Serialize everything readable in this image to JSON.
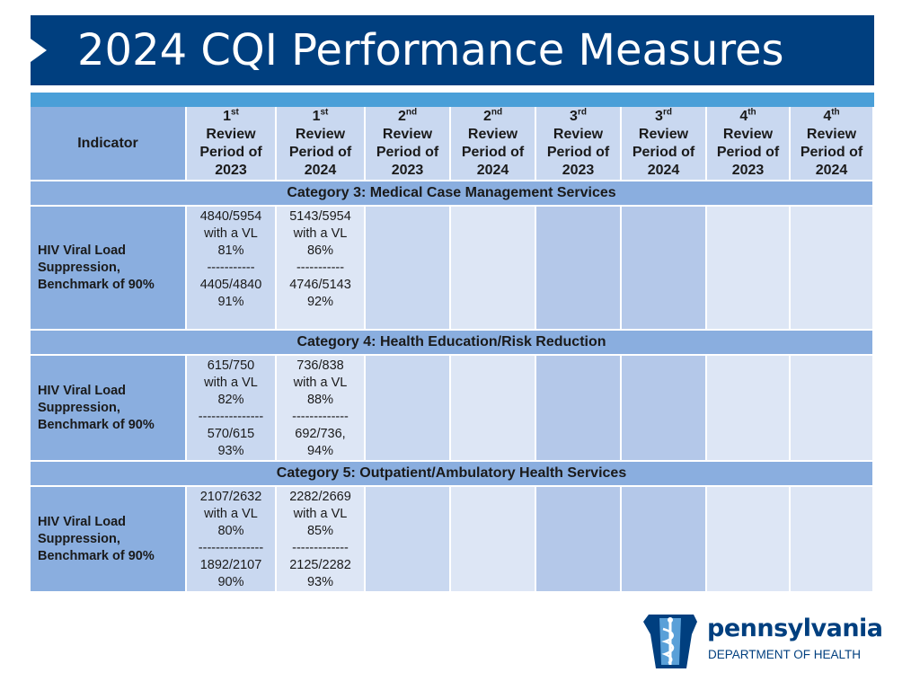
{
  "slide": {
    "title": "2024 CQI Performance Measures"
  },
  "table": {
    "indicator_header": "Indicator",
    "periods": [
      {
        "ord": "1",
        "sup": "st",
        "line2": "Review",
        "line3": "Period of",
        "year": "2023"
      },
      {
        "ord": "1",
        "sup": "st",
        "line2": "Review",
        "line3": "Period of",
        "year": "2024"
      },
      {
        "ord": "2",
        "sup": "nd",
        "line2": "Review",
        "line3": "Period of",
        "year": "2023"
      },
      {
        "ord": "2",
        "sup": "nd",
        "line2": "Review",
        "line3": "Period of",
        "year": "2024"
      },
      {
        "ord": "3",
        "sup": "rd",
        "line2": "Review",
        "line3": "Period of",
        "year": "2023"
      },
      {
        "ord": "3",
        "sup": "rd",
        "line2": "Review",
        "line3": "Period of",
        "year": "2024"
      },
      {
        "ord": "4",
        "sup": "th",
        "line2": "Review",
        "line3": "Period of",
        "year": "2023"
      },
      {
        "ord": "4",
        "sup": "th",
        "line2": "Review",
        "line3": "Period of",
        "year": "2024"
      }
    ],
    "sections": [
      {
        "category": "Category 3:  Medical Case Management Services",
        "indicator": "HIV Viral Load\nSuppression,\nBenchmark of 90%",
        "values": [
          "4840/5954\nwith a VL\n81%\n-----------\n4405/4840\n91%",
          "5143/5954\nwith a VL\n86%\n-----------\n4746/5143\n92%",
          "",
          "",
          "",
          "",
          "",
          ""
        ]
      },
      {
        "category": "Category 4:  Health Education/Risk Reduction",
        "indicator": "HIV Viral Load\nSuppression,\nBenchmark of 90%",
        "values": [
          "615/750\nwith a VL\n82%\n---------------\n570/615\n93%",
          "736/838\nwith a VL\n88%\n-------------\n692/736,\n94%",
          "",
          "",
          "",
          "",
          "",
          ""
        ]
      },
      {
        "category": "Category 5:  Outpatient/Ambulatory Health Services",
        "indicator": "HIV Viral Load\nSuppression,\nBenchmark of 90%",
        "values": [
          "2107/2632\nwith a VL\n80%\n---------------\n1892/2107\n90%",
          "2282/2669\nwith a VL\n85%\n-------------\n2125/2282\n93%",
          "",
          "",
          "",
          "",
          "",
          ""
        ]
      }
    ]
  },
  "logo": {
    "name": "pennsylvania",
    "department": "DEPARTMENT OF HEALTH",
    "icon": "keystone-caduceus-icon",
    "color": "#003f7f"
  },
  "colors": {
    "title_bar": "#003f7f",
    "accent_bar": "#4a9fd8",
    "header_dark": "#8aaedf",
    "cell_light": "#c9d8f0"
  }
}
